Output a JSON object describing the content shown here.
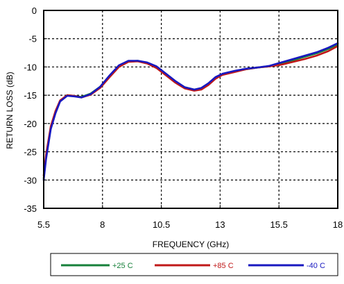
{
  "chart_data": {
    "type": "line",
    "title": "",
    "xlabel": "FREQUENCY (GHz)",
    "ylabel": "RETURN LOSS (dB)",
    "xlim": [
      5.5,
      18
    ],
    "ylim": [
      -35,
      0
    ],
    "x_ticks": [
      5.5,
      8,
      10.5,
      13,
      15.5,
      18
    ],
    "x_tick_labels": [
      "5.5",
      "8",
      "10.5",
      "13",
      "15.5",
      "18"
    ],
    "y_ticks": [
      0,
      -5,
      -10,
      -15,
      -20,
      -25,
      -30,
      -35
    ],
    "y_tick_labels": [
      "0",
      "-5",
      "-10",
      "-15",
      "-20",
      "-25",
      "-30",
      "-35"
    ],
    "grid": true,
    "grid_style": "dotted",
    "legend_position": "bottom",
    "series": [
      {
        "name": "+25 C",
        "color": "#16803a",
        "x": [
          5.5,
          5.6,
          5.8,
          6.0,
          6.2,
          6.5,
          6.8,
          7.1,
          7.5,
          7.9,
          8.3,
          8.7,
          9.1,
          9.5,
          9.9,
          10.3,
          10.7,
          11.1,
          11.5,
          11.9,
          12.2,
          12.5,
          12.8,
          13.1,
          13.6,
          14.1,
          14.6,
          15.1,
          15.6,
          16.1,
          16.6,
          17.1,
          17.6,
          18.0
        ],
        "y": [
          -29.7,
          -26.0,
          -20.8,
          -18.0,
          -16.0,
          -15.0,
          -15.1,
          -15.3,
          -14.7,
          -13.5,
          -11.6,
          -9.8,
          -9.0,
          -8.9,
          -9.3,
          -10.0,
          -11.3,
          -12.6,
          -13.6,
          -14.0,
          -13.8,
          -13.0,
          -12.0,
          -11.3,
          -10.8,
          -10.4,
          -10.1,
          -9.9,
          -9.4,
          -8.8,
          -8.2,
          -7.6,
          -6.8,
          -6.0
        ]
      },
      {
        "name": "+85 C",
        "color": "#c01818",
        "x": [
          5.5,
          5.6,
          5.8,
          6.0,
          6.2,
          6.5,
          6.8,
          7.1,
          7.5,
          7.9,
          8.3,
          8.7,
          9.1,
          9.5,
          9.9,
          10.3,
          10.7,
          11.1,
          11.5,
          11.9,
          12.2,
          12.5,
          12.8,
          13.1,
          13.6,
          14.1,
          14.6,
          15.1,
          15.6,
          16.1,
          16.6,
          17.1,
          17.6,
          18.0
        ],
        "y": [
          -29.2,
          -25.5,
          -20.5,
          -17.8,
          -15.9,
          -15.0,
          -15.1,
          -15.4,
          -14.9,
          -13.7,
          -11.8,
          -10.0,
          -9.1,
          -9.0,
          -9.4,
          -10.2,
          -11.5,
          -12.8,
          -13.8,
          -14.2,
          -14.0,
          -13.2,
          -12.1,
          -11.4,
          -10.9,
          -10.4,
          -10.1,
          -9.9,
          -9.6,
          -9.1,
          -8.6,
          -8.0,
          -7.2,
          -6.3
        ]
      },
      {
        "name": "-40 C",
        "color": "#1818c0",
        "x": [
          5.5,
          5.6,
          5.8,
          6.0,
          6.2,
          6.5,
          6.8,
          7.1,
          7.5,
          7.9,
          8.3,
          8.7,
          9.1,
          9.5,
          9.9,
          10.3,
          10.7,
          11.1,
          11.5,
          11.9,
          12.2,
          12.5,
          12.8,
          13.1,
          13.6,
          14.1,
          14.6,
          15.1,
          15.6,
          16.1,
          16.6,
          17.1,
          17.6,
          18.0
        ],
        "y": [
          -30.0,
          -26.3,
          -21.0,
          -18.2,
          -16.1,
          -15.1,
          -15.2,
          -15.4,
          -14.8,
          -13.5,
          -11.5,
          -9.7,
          -8.9,
          -8.9,
          -9.2,
          -9.9,
          -11.2,
          -12.5,
          -13.6,
          -14.0,
          -13.7,
          -12.9,
          -11.8,
          -11.2,
          -10.7,
          -10.3,
          -10.1,
          -9.8,
          -9.2,
          -8.6,
          -8.0,
          -7.4,
          -6.6,
          -5.8
        ]
      }
    ]
  }
}
